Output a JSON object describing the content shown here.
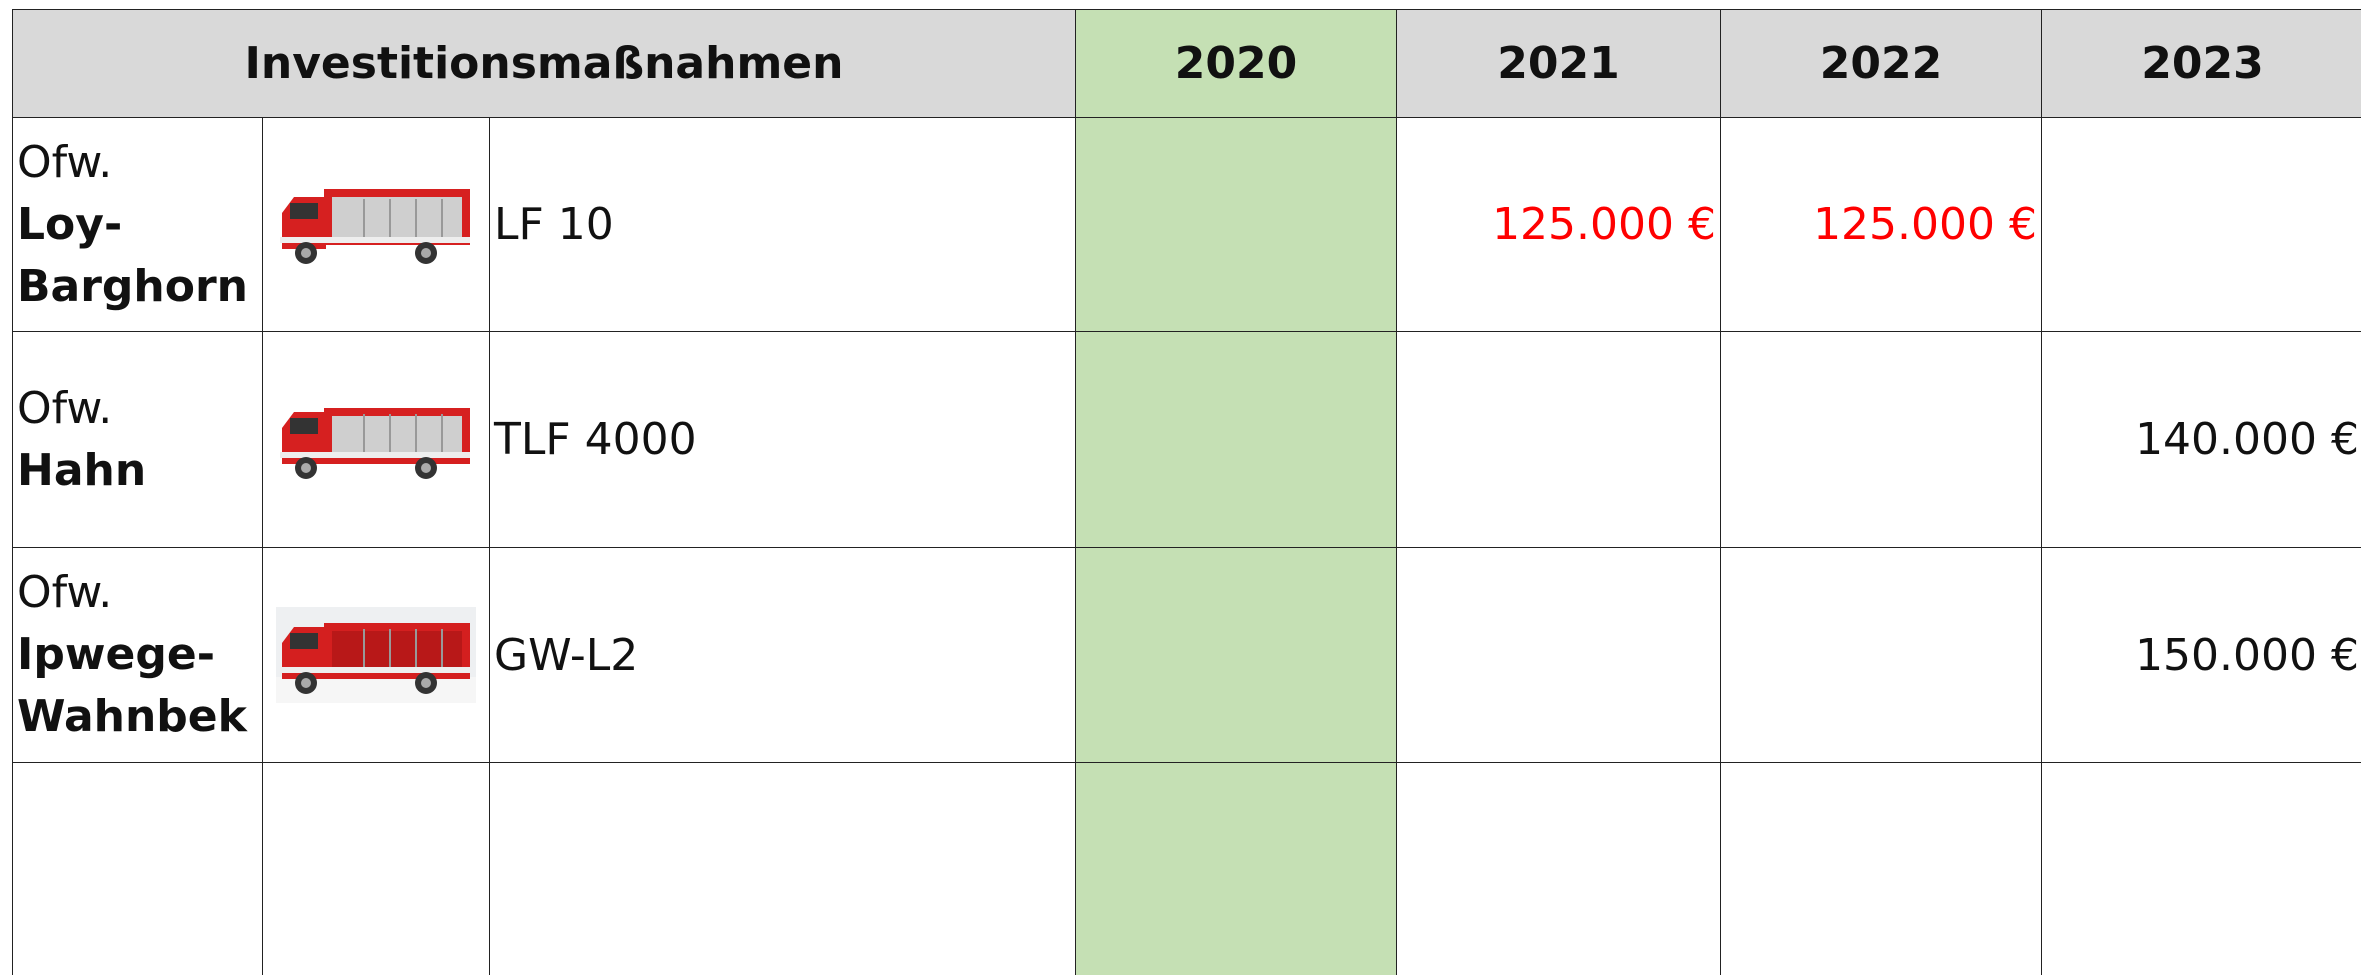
{
  "header": {
    "title": "Investitionsmaßnahmen",
    "years": [
      "2020",
      "2021",
      "2022",
      "2023"
    ]
  },
  "table": {
    "rows": [
      {
        "prefix": "Ofw.",
        "name": "Loy-Barghorn",
        "vehicle": "LF 10",
        "values": [
          null,
          "125.000 €",
          "125.000 €",
          null
        ]
      },
      {
        "prefix": "Ofw.",
        "name": "Hahn",
        "vehicle": "TLF 4000",
        "values": [
          null,
          null,
          null,
          "140.000 €"
        ]
      },
      {
        "prefix": "Ofw.",
        "name": "Ipwege-Wahnbek",
        "vehicle": "GW-L2",
        "values": [
          null,
          null,
          null,
          "150.000 €"
        ]
      }
    ]
  }
}
